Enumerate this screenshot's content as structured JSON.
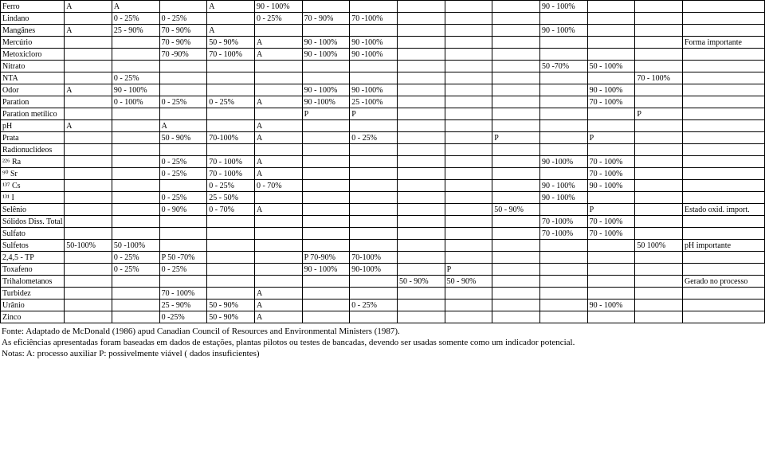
{
  "rows": [
    {
      "name": "Ferro",
      "c": [
        "A",
        "A",
        "",
        "A",
        "90 - 100%",
        "",
        "",
        "",
        "",
        "",
        "90 - 100%",
        "",
        "",
        ""
      ]
    },
    {
      "name": "Lindano",
      "c": [
        "",
        "0 - 25%",
        "0 - 25%",
        "",
        "0 - 25%",
        "70 - 90%",
        "70 -100%",
        "",
        "",
        "",
        "",
        "",
        "",
        ""
      ]
    },
    {
      "name": "Mangânes",
      "c": [
        "A",
        "25 - 90%",
        "70 - 90%",
        "A",
        "",
        "",
        "",
        "",
        "",
        "",
        "90 - 100%",
        "",
        "",
        ""
      ]
    },
    {
      "name": "Mercúrio",
      "c": [
        "",
        "",
        "70 - 90%",
        "50 - 90%",
        "A",
        "90 - 100%",
        "90 -100%",
        "",
        "",
        "",
        "",
        "",
        "",
        "Forma importante"
      ]
    },
    {
      "name": "Metoxicloro",
      "c": [
        "",
        "",
        "70 -90%",
        "70 - 100%",
        "A",
        "90 - 100%",
        "90 -100%",
        "",
        "",
        "",
        "",
        "",
        "",
        ""
      ]
    },
    {
      "name": "Nitrato",
      "c": [
        "",
        "",
        "",
        "",
        "",
        "",
        "",
        "",
        "",
        "",
        "50 -70%",
        "50 - 100%",
        "",
        ""
      ]
    },
    {
      "name": "NTA",
      "c": [
        "",
        "0 - 25%",
        "",
        "",
        "",
        "",
        "",
        "",
        "",
        "",
        "",
        "",
        "70 - 100%",
        ""
      ]
    },
    {
      "name": "Odor",
      "c": [
        "A",
        "90 - 100%",
        "",
        "",
        "",
        "90 - 100%",
        "90 -100%",
        "",
        "",
        "",
        "",
        "90 - 100%",
        "",
        ""
      ]
    },
    {
      "name": "Paration",
      "c": [
        "",
        "0 - 100%",
        "0 - 25%",
        "0 - 25%",
        "A",
        "90 -100%",
        "25 -100%",
        "",
        "",
        "",
        "",
        "70 - 100%",
        "",
        ""
      ]
    },
    {
      "name": "Paration metílico",
      "c": [
        "",
        "",
        "",
        "",
        "",
        "P",
        "P",
        "",
        "",
        "",
        "",
        "",
        "P",
        ""
      ]
    },
    {
      "name": "pH",
      "c": [
        "A",
        "",
        "A",
        "",
        "A",
        "",
        "",
        "",
        "",
        "",
        "",
        "",
        "",
        ""
      ]
    },
    {
      "name": "Prata",
      "c": [
        "",
        "",
        "50 - 90%",
        "70-100%",
        "A",
        "",
        "0 - 25%",
        "",
        "",
        "P",
        "",
        "P",
        "",
        ""
      ]
    },
    {
      "name": "Radionuclídeos",
      "c": [
        "",
        "",
        "",
        "",
        "",
        "",
        "",
        "",
        "",
        "",
        "",
        "",
        "",
        ""
      ]
    },
    {
      "name": "²²⁶ Ra",
      "c": [
        "",
        "",
        "0 - 25%",
        "70 - 100%",
        "A",
        "",
        "",
        "",
        "",
        "",
        "90 -100%",
        "70 - 100%",
        "",
        ""
      ]
    },
    {
      "name": "⁹⁰ Sr",
      "c": [
        "",
        "",
        "0 - 25%",
        "70 - 100%",
        "A",
        "",
        "",
        "",
        "",
        "",
        "",
        "70 - 100%",
        "",
        ""
      ]
    },
    {
      "name": "¹³⁷ Cs",
      "c": [
        "",
        "",
        "",
        "0 - 25%",
        "0 - 70%",
        "",
        "",
        "",
        "",
        "",
        "90 - 100%",
        "90 - 100%",
        "",
        ""
      ]
    },
    {
      "name": "¹³¹ I",
      "c": [
        "",
        "",
        "0 - 25%",
        "25 - 50%",
        "",
        "",
        "",
        "",
        "",
        "",
        "90 - 100%",
        "",
        "",
        ""
      ]
    },
    {
      "name": "Selênio",
      "c": [
        "",
        "",
        "0 - 90%",
        "0 - 70%",
        "A",
        "",
        "",
        "",
        "",
        "50 - 90%",
        "",
        "P",
        "",
        "Estado oxid. import."
      ]
    },
    {
      "name": "Sólidos Diss. Total",
      "c": [
        "",
        "",
        "",
        "",
        "",
        "",
        "",
        "",
        "",
        "",
        "70 -100%",
        "70 - 100%",
        "",
        ""
      ]
    },
    {
      "name": "Sulfato",
      "c": [
        "",
        "",
        "",
        "",
        "",
        "",
        "",
        "",
        "",
        "",
        "70 -100%",
        "70 - 100%",
        "",
        ""
      ]
    },
    {
      "name": "Sulfetos",
      "c": [
        "50-100%",
        "50 -100%",
        "",
        "",
        "",
        "",
        "",
        "",
        "",
        "",
        "",
        "",
        "50 100%",
        "pH importante"
      ]
    },
    {
      "name": "2,4,5 - TP",
      "c": [
        "",
        "0 - 25%",
        "P 50 -70%",
        "",
        "",
        "P 70-90%",
        "70-100%",
        "",
        "",
        "",
        "",
        "",
        "",
        ""
      ]
    },
    {
      "name": "Toxafeno",
      "c": [
        "",
        "0 - 25%",
        "0 - 25%",
        "",
        "",
        "90 - 100%",
        "90-100%",
        "",
        "P",
        "",
        "",
        "",
        "",
        ""
      ]
    },
    {
      "name": "Trihalometanos",
      "c": [
        "",
        "",
        "",
        "",
        "",
        "",
        "",
        "50 - 90%",
        "50 - 90%",
        "",
        "",
        "",
        "",
        "Gerado no processo"
      ]
    },
    {
      "name": "Turbidez",
      "c": [
        "",
        "",
        "70 - 100%",
        "",
        "A",
        "",
        "",
        "",
        "",
        "",
        "",
        "",
        "",
        ""
      ]
    },
    {
      "name": "Urânio",
      "c": [
        "",
        "",
        "25 - 90%",
        "50 - 90%",
        "A",
        "",
        "0 - 25%",
        "",
        "",
        "",
        "",
        "90 - 100%",
        "",
        ""
      ]
    },
    {
      "name": "Zinco",
      "c": [
        "",
        "",
        "0 -25%",
        "50 - 90%",
        "A",
        "",
        "",
        "",
        "",
        "",
        "",
        "",
        "",
        ""
      ]
    }
  ],
  "footnotes": [
    "Fonte: Adaptado de McDonald (1986) apud Canadian Council of Resources and Environmental Ministers (1987).",
    "As eficiências apresentadas foram baseadas em dados de estações, plantas pilotos ou testes de bancadas, devendo ser usadas somente como um indicador potencial.",
    "Notas: A: processo auxiliar  P: possivelmente viável ( dados insuficientes)"
  ]
}
